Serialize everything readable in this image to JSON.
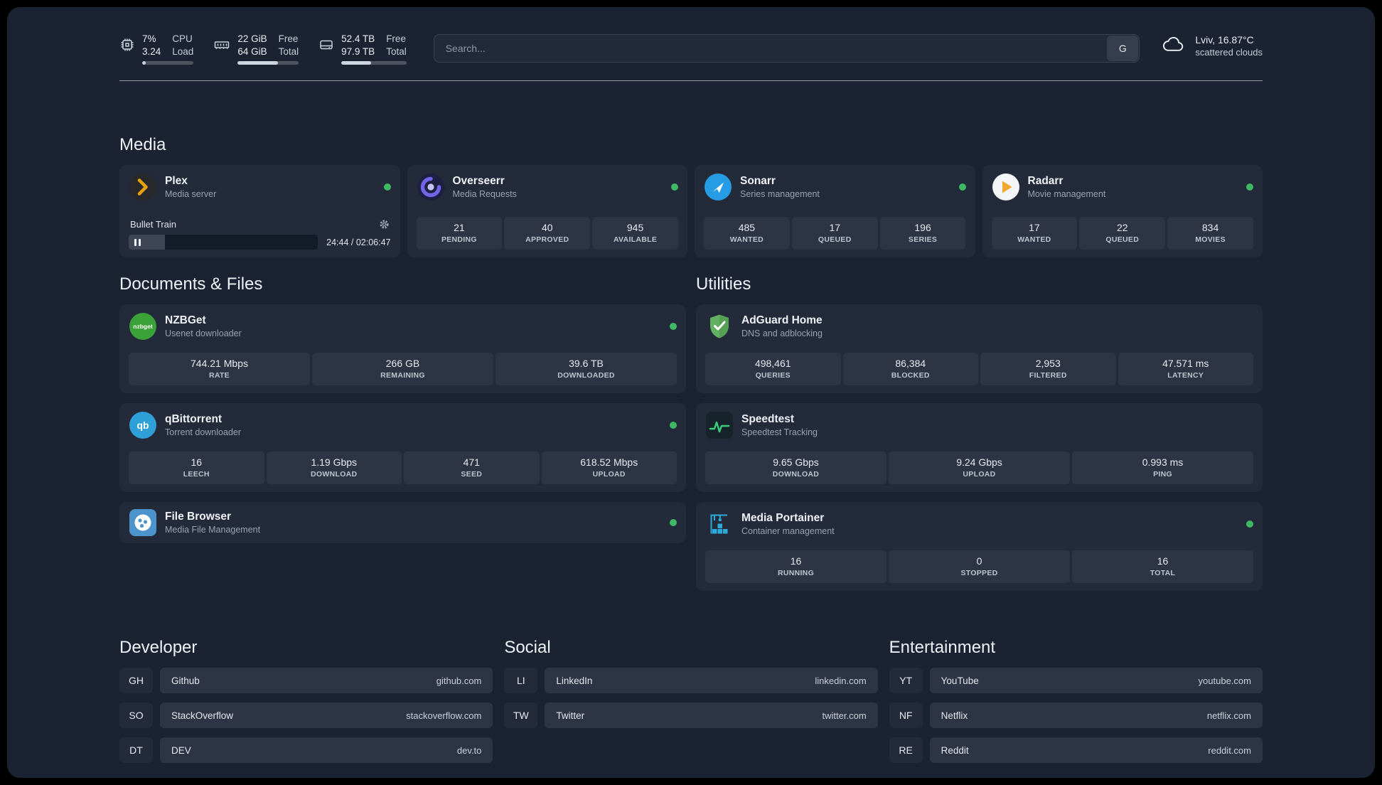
{
  "theme": {
    "background": "#000000",
    "panel_bg": "#1b2332",
    "card_bg": "#232b3b",
    "tile_bg": "#2d3545",
    "status_online": "#3eb863",
    "text_primary": "#eef1f5",
    "text_secondary": "#98a2b0",
    "plex_accent": "#e5a00d",
    "adguard_green": "#62b062",
    "speedtest_green": "#36d07f",
    "portainer_blue": "#2eaadc"
  },
  "header": {
    "cpu": {
      "v1": "7%",
      "l1": "CPU",
      "v2": "3.24",
      "l2": "Load",
      "progress": 7
    },
    "memory": {
      "v1": "22 GiB",
      "l1": "Free",
      "v2": "64 GiB",
      "l2": "Total",
      "progress": 66
    },
    "disk": {
      "v1": "52.4 TB",
      "l1": "Free",
      "v2": "97.9 TB",
      "l2": "Total",
      "progress": 46
    },
    "search": {
      "placeholder": "Search...",
      "provider_label": "G"
    },
    "weather": {
      "title": "Lviv, 16.87°C",
      "subtitle": "scattered clouds"
    }
  },
  "sections": {
    "media": {
      "title": "Media"
    },
    "documents": {
      "title": "Documents & Files"
    },
    "utilities": {
      "title": "Utilities"
    },
    "developer": {
      "title": "Developer"
    },
    "social": {
      "title": "Social"
    },
    "entertainment": {
      "title": "Entertainment"
    }
  },
  "services": {
    "plex": {
      "name": "Plex",
      "desc": "Media server",
      "status": "online",
      "player": {
        "title": "Bullet Train",
        "time": "24:44 / 02:06:47",
        "progress": 19
      }
    },
    "overseerr": {
      "name": "Overseerr",
      "desc": "Media Requests",
      "status": "online",
      "stats": [
        {
          "value": "21",
          "label": "PENDING"
        },
        {
          "value": "40",
          "label": "APPROVED"
        },
        {
          "value": "945",
          "label": "AVAILABLE"
        }
      ]
    },
    "sonarr": {
      "name": "Sonarr",
      "desc": "Series management",
      "status": "online",
      "stats": [
        {
          "value": "485",
          "label": "WANTED"
        },
        {
          "value": "17",
          "label": "QUEUED"
        },
        {
          "value": "196",
          "label": "SERIES"
        }
      ]
    },
    "radarr": {
      "name": "Radarr",
      "desc": "Movie management",
      "status": "online",
      "stats": [
        {
          "value": "17",
          "label": "WANTED"
        },
        {
          "value": "22",
          "label": "QUEUED"
        },
        {
          "value": "834",
          "label": "MOVIES"
        }
      ]
    },
    "nzbget": {
      "name": "NZBGet",
      "desc": "Usenet downloader",
      "status": "online",
      "stats": [
        {
          "value": "744.21 Mbps",
          "label": "RATE"
        },
        {
          "value": "266 GB",
          "label": "REMAINING"
        },
        {
          "value": "39.6 TB",
          "label": "DOWNLOADED"
        }
      ]
    },
    "qbittorrent": {
      "name": "qBittorrent",
      "desc": "Torrent downloader",
      "status": "online",
      "stats": [
        {
          "value": "16",
          "label": "LEECH"
        },
        {
          "value": "1.19 Gbps",
          "label": "DOWNLOAD"
        },
        {
          "value": "471",
          "label": "SEED"
        },
        {
          "value": "618.52 Mbps",
          "label": "UPLOAD"
        }
      ]
    },
    "filebrowser": {
      "name": "File Browser",
      "desc": "Media File Management",
      "status": "online"
    },
    "adguard": {
      "name": "AdGuard Home",
      "desc": "DNS and adblocking",
      "stats": [
        {
          "value": "498,461",
          "label": "QUERIES"
        },
        {
          "value": "86,384",
          "label": "BLOCKED"
        },
        {
          "value": "2,953",
          "label": "FILTERED"
        },
        {
          "value": "47.571 ms",
          "label": "LATENCY"
        }
      ]
    },
    "speedtest": {
      "name": "Speedtest",
      "desc": "Speedtest Tracking",
      "stats": [
        {
          "value": "9.65 Gbps",
          "label": "DOWNLOAD"
        },
        {
          "value": "9.24 Gbps",
          "label": "UPLOAD"
        },
        {
          "value": "0.993 ms",
          "label": "PING"
        }
      ]
    },
    "portainer": {
      "name": "Media Portainer",
      "desc": "Container management",
      "status": "online",
      "stats": [
        {
          "value": "16",
          "label": "RUNNING"
        },
        {
          "value": "0",
          "label": "STOPPED"
        },
        {
          "value": "16",
          "label": "TOTAL"
        }
      ]
    }
  },
  "bookmarks": {
    "developer": [
      {
        "abbr": "GH",
        "name": "Github",
        "domain": "github.com"
      },
      {
        "abbr": "SO",
        "name": "StackOverflow",
        "domain": "stackoverflow.com"
      },
      {
        "abbr": "DT",
        "name": "DEV",
        "domain": "dev.to"
      }
    ],
    "social": [
      {
        "abbr": "LI",
        "name": "LinkedIn",
        "domain": "linkedin.com"
      },
      {
        "abbr": "TW",
        "name": "Twitter",
        "domain": "twitter.com"
      }
    ],
    "entertainment": [
      {
        "abbr": "YT",
        "name": "YouTube",
        "domain": "youtube.com"
      },
      {
        "abbr": "NF",
        "name": "Netflix",
        "domain": "netflix.com"
      },
      {
        "abbr": "RE",
        "name": "Reddit",
        "domain": "reddit.com"
      }
    ]
  }
}
